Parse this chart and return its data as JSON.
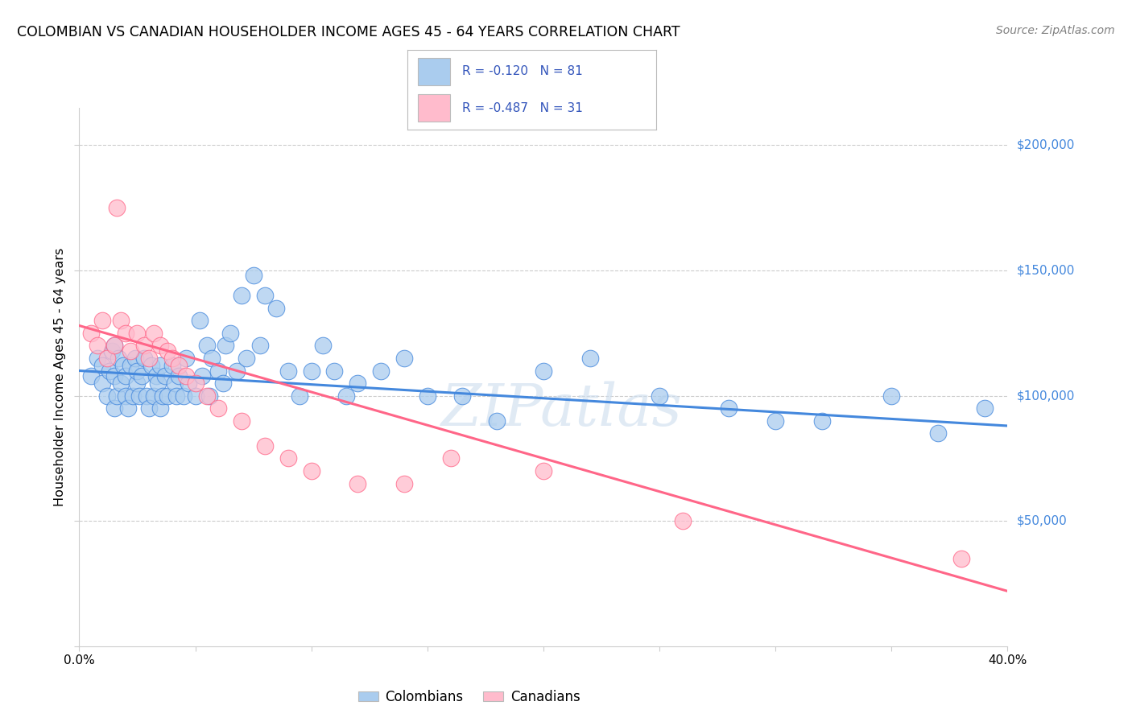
{
  "title": "COLOMBIAN VS CANADIAN HOUSEHOLDER INCOME AGES 45 - 64 YEARS CORRELATION CHART",
  "source": "Source: ZipAtlas.com",
  "ylabel": "Householder Income Ages 45 - 64 years",
  "y_ticks": [
    0,
    50000,
    100000,
    150000,
    200000
  ],
  "y_tick_labels": [
    "",
    "$50,000",
    "$100,000",
    "$150,000",
    "$200,000"
  ],
  "xlim": [
    0.0,
    0.4
  ],
  "ylim": [
    0,
    215000
  ],
  "colombian_color": "#aaccee",
  "canadian_color": "#ffbbcc",
  "line_colombian": "#4488dd",
  "line_canadian": "#ff6688",
  "legend_text_color": "#3355bb",
  "legend_R_colombian": "R = -0.120",
  "legend_N_colombian": "N = 81",
  "legend_R_canadian": "R = -0.487",
  "legend_N_canadian": "N = 31",
  "watermark": "ZIPatlas",
  "colombian_scatter_x": [
    0.005,
    0.008,
    0.01,
    0.01,
    0.012,
    0.013,
    0.014,
    0.015,
    0.015,
    0.015,
    0.016,
    0.017,
    0.018,
    0.019,
    0.02,
    0.02,
    0.021,
    0.022,
    0.023,
    0.024,
    0.025,
    0.025,
    0.026,
    0.027,
    0.028,
    0.029,
    0.03,
    0.031,
    0.032,
    0.033,
    0.034,
    0.035,
    0.035,
    0.036,
    0.037,
    0.038,
    0.04,
    0.041,
    0.042,
    0.043,
    0.045,
    0.046,
    0.047,
    0.05,
    0.052,
    0.053,
    0.055,
    0.056,
    0.057,
    0.06,
    0.062,
    0.063,
    0.065,
    0.068,
    0.07,
    0.072,
    0.075,
    0.078,
    0.08,
    0.085,
    0.09,
    0.095,
    0.1,
    0.105,
    0.11,
    0.115,
    0.12,
    0.13,
    0.14,
    0.15,
    0.165,
    0.18,
    0.2,
    0.22,
    0.25,
    0.28,
    0.3,
    0.32,
    0.35,
    0.37,
    0.39
  ],
  "colombian_scatter_y": [
    108000,
    115000,
    112000,
    105000,
    100000,
    110000,
    118000,
    95000,
    108000,
    120000,
    100000,
    115000,
    105000,
    112000,
    100000,
    108000,
    95000,
    112000,
    100000,
    115000,
    105000,
    110000,
    100000,
    108000,
    115000,
    100000,
    95000,
    112000,
    100000,
    108000,
    105000,
    95000,
    112000,
    100000,
    108000,
    100000,
    112000,
    105000,
    100000,
    108000,
    100000,
    115000,
    105000,
    100000,
    130000,
    108000,
    120000,
    100000,
    115000,
    110000,
    105000,
    120000,
    125000,
    110000,
    140000,
    115000,
    148000,
    120000,
    140000,
    135000,
    110000,
    100000,
    110000,
    120000,
    110000,
    100000,
    105000,
    110000,
    115000,
    100000,
    100000,
    90000,
    110000,
    115000,
    100000,
    95000,
    90000,
    90000,
    100000,
    85000,
    95000
  ],
  "canadian_scatter_x": [
    0.005,
    0.008,
    0.01,
    0.012,
    0.015,
    0.016,
    0.018,
    0.02,
    0.022,
    0.025,
    0.028,
    0.03,
    0.032,
    0.035,
    0.038,
    0.04,
    0.043,
    0.046,
    0.05,
    0.055,
    0.06,
    0.07,
    0.08,
    0.09,
    0.1,
    0.12,
    0.14,
    0.16,
    0.2,
    0.26,
    0.38
  ],
  "canadian_scatter_y": [
    125000,
    120000,
    130000,
    115000,
    120000,
    175000,
    130000,
    125000,
    118000,
    125000,
    120000,
    115000,
    125000,
    120000,
    118000,
    115000,
    112000,
    108000,
    105000,
    100000,
    95000,
    90000,
    80000,
    75000,
    70000,
    65000,
    65000,
    75000,
    70000,
    50000,
    35000
  ],
  "colombian_line_x": [
    0.0,
    0.4
  ],
  "colombian_line_y": [
    110000,
    88000
  ],
  "canadian_line_x": [
    0.0,
    0.4
  ],
  "canadian_line_y": [
    128000,
    22000
  ],
  "x_tick_positions": [
    0.0,
    0.05,
    0.1,
    0.15,
    0.2,
    0.25,
    0.3,
    0.35,
    0.4
  ],
  "x_tick_labels": [
    "0.0%",
    "",
    "",
    "",
    "",
    "",
    "",
    "",
    "40.0%"
  ],
  "grid_color": "#cccccc",
  "spine_color": "#cccccc"
}
